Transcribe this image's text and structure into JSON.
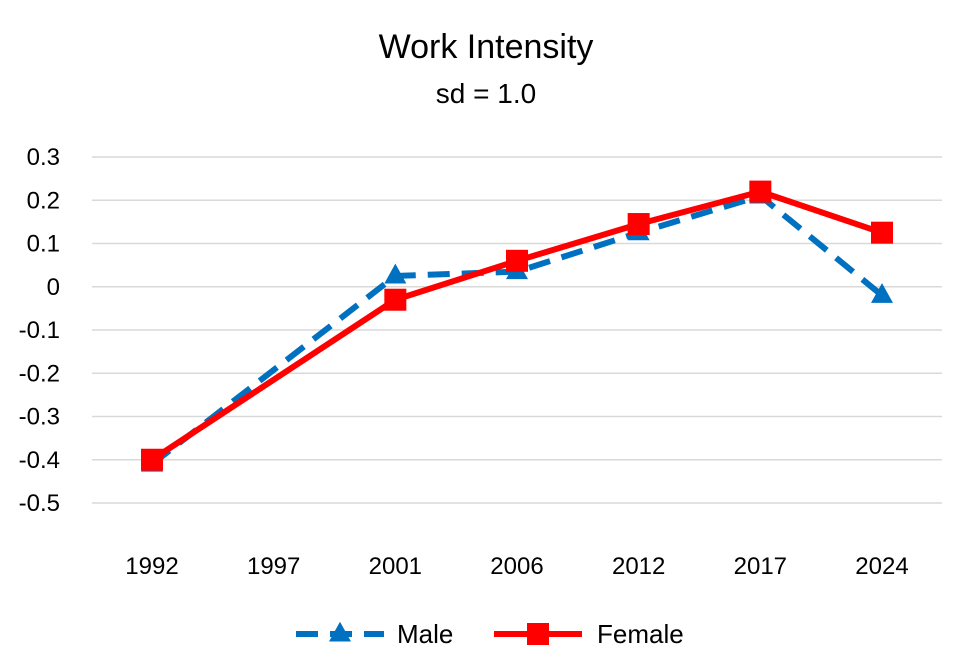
{
  "chart_data": {
    "type": "line",
    "title": "Work Intensity",
    "subtitle": "sd = 1.0",
    "categories": [
      "1992",
      "1997",
      "2001",
      "2006",
      "2012",
      "2017",
      "2024"
    ],
    "y_ticks": [
      "0.3",
      "0.2",
      "0.1",
      "0",
      "-0.1",
      "-0.2",
      "-0.3",
      "-0.4",
      "-0.5"
    ],
    "ylim": [
      -0.5,
      0.3
    ],
    "grid": true,
    "legend_position": "bottom",
    "series": [
      {
        "name": "Male",
        "values": [
          -0.41,
          null,
          0.025,
          0.035,
          0.125,
          0.21,
          -0.02
        ],
        "color": "#0070C0",
        "line_style": "dashed",
        "marker": "triangle"
      },
      {
        "name": "Female",
        "values": [
          -0.4,
          null,
          -0.03,
          0.06,
          0.145,
          0.22,
          0.125
        ],
        "color": "#FF0000",
        "line_style": "solid",
        "marker": "square"
      }
    ]
  }
}
